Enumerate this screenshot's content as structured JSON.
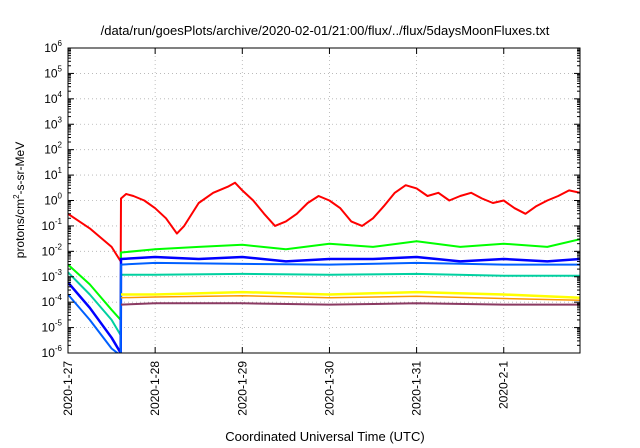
{
  "chart_data": {
    "type": "line",
    "title": "/data/run/goesPlots/archive/2020-02-01/21:00/flux/../flux/5daysMoonFluxes.txt",
    "xlabel": "Coordinated Universal Time (UTC)",
    "ylabel": "protons/cm²-s-sr-MeV",
    "ylabel_parts": {
      "pre": "protons/cm",
      "sup": "2",
      "post": "-s-sr-MeV"
    },
    "y_scale": "log",
    "ylim": [
      1e-06,
      1000000.0
    ],
    "xlim": [
      "2020-01-27T00:00",
      "2020-02-01T21:00"
    ],
    "grid": true,
    "legend": "none",
    "x_ticks": [
      "2020-1-27",
      "2020-1-28",
      "2020-1-29",
      "2020-1-30",
      "2020-1-31",
      "2020-2-1"
    ],
    "y_ticks": [
      {
        "base": "10",
        "exp": "-6"
      },
      {
        "base": "10",
        "exp": "-5"
      },
      {
        "base": "10",
        "exp": "-4"
      },
      {
        "base": "10",
        "exp": "-3"
      },
      {
        "base": "10",
        "exp": "-2"
      },
      {
        "base": "10",
        "exp": "-1"
      },
      {
        "base": "10",
        "exp": "0"
      },
      {
        "base": "10",
        "exp": "1"
      },
      {
        "base": "10",
        "exp": "2"
      },
      {
        "base": "10",
        "exp": "3"
      },
      {
        "base": "10",
        "exp": "4"
      },
      {
        "base": "10",
        "exp": "5"
      },
      {
        "base": "10",
        "exp": "6"
      }
    ],
    "series": [
      {
        "color": "#ff0000",
        "width": 2,
        "points": [
          [
            "2020-01-27T00:00",
            0.3
          ],
          [
            "2020-01-27T06:00",
            0.08
          ],
          [
            "2020-01-27T12:00",
            0.015
          ],
          [
            "2020-01-27T14:30",
            0.004
          ],
          [
            "2020-01-27T14:36",
            1.2
          ],
          [
            "2020-01-27T16:00",
            1.8
          ],
          [
            "2020-01-27T18:00",
            1.5
          ],
          [
            "2020-01-27T21:00",
            1.0
          ],
          [
            "2020-01-28T00:00",
            0.5
          ],
          [
            "2020-01-28T03:00",
            0.2
          ],
          [
            "2020-01-28T06:00",
            0.05
          ],
          [
            "2020-01-28T08:00",
            0.1
          ],
          [
            "2020-01-28T12:00",
            0.8
          ],
          [
            "2020-01-28T16:00",
            2.0
          ],
          [
            "2020-01-28T20:00",
            3.5
          ],
          [
            "2020-01-28T22:00",
            5.0
          ],
          [
            "2020-01-29T00:00",
            2.5
          ],
          [
            "2020-01-29T03:00",
            1.0
          ],
          [
            "2020-01-29T06:00",
            0.3
          ],
          [
            "2020-01-29T09:00",
            0.1
          ],
          [
            "2020-01-29T12:00",
            0.15
          ],
          [
            "2020-01-29T15:00",
            0.3
          ],
          [
            "2020-01-29T18:00",
            0.8
          ],
          [
            "2020-01-29T21:00",
            1.5
          ],
          [
            "2020-01-30T00:00",
            1.0
          ],
          [
            "2020-01-30T03:00",
            0.5
          ],
          [
            "2020-01-30T06:00",
            0.15
          ],
          [
            "2020-01-30T09:00",
            0.1
          ],
          [
            "2020-01-30T12:00",
            0.2
          ],
          [
            "2020-01-30T15:00",
            0.6
          ],
          [
            "2020-01-30T18:00",
            2.0
          ],
          [
            "2020-01-30T21:00",
            4.0
          ],
          [
            "2020-01-31T00:00",
            3.0
          ],
          [
            "2020-01-31T03:00",
            1.5
          ],
          [
            "2020-01-31T06:00",
            2.0
          ],
          [
            "2020-01-31T09:00",
            1.0
          ],
          [
            "2020-01-31T12:00",
            1.5
          ],
          [
            "2020-01-31T15:00",
            2.0
          ],
          [
            "2020-01-31T18:00",
            1.2
          ],
          [
            "2020-01-31T21:00",
            0.8
          ],
          [
            "2020-02-01T00:00",
            1.0
          ],
          [
            "2020-02-01T03:00",
            0.5
          ],
          [
            "2020-02-01T06:00",
            0.3
          ],
          [
            "2020-02-01T09:00",
            0.6
          ],
          [
            "2020-02-01T12:00",
            1.0
          ],
          [
            "2020-02-01T15:00",
            1.5
          ],
          [
            "2020-02-01T18:00",
            2.5
          ],
          [
            "2020-02-01T21:00",
            2.0
          ]
        ]
      },
      {
        "color": "#00ff00",
        "width": 2,
        "points": [
          [
            "2020-01-27T00:00",
            0.003
          ],
          [
            "2020-01-27T06:00",
            0.0005
          ],
          [
            "2020-01-27T12:00",
            5e-05
          ],
          [
            "2020-01-27T14:30",
            2e-05
          ],
          [
            "2020-01-27T14:36",
            0.009
          ],
          [
            "2020-01-28T00:00",
            0.012
          ],
          [
            "2020-01-28T12:00",
            0.015
          ],
          [
            "2020-01-29T00:00",
            0.018
          ],
          [
            "2020-01-29T12:00",
            0.012
          ],
          [
            "2020-01-30T00:00",
            0.02
          ],
          [
            "2020-01-30T12:00",
            0.015
          ],
          [
            "2020-01-31T00:00",
            0.025
          ],
          [
            "2020-01-31T12:00",
            0.015
          ],
          [
            "2020-02-01T00:00",
            0.02
          ],
          [
            "2020-02-01T12:00",
            0.015
          ],
          [
            "2020-02-01T21:00",
            0.03
          ]
        ]
      },
      {
        "color": "#00d0a0",
        "width": 2,
        "points": [
          [
            "2020-01-27T00:00",
            0.0015
          ],
          [
            "2020-01-27T06:00",
            0.0002
          ],
          [
            "2020-01-27T12:00",
            2e-05
          ],
          [
            "2020-01-27T14:30",
            5e-06
          ],
          [
            "2020-01-27T14:36",
            0.0012
          ],
          [
            "2020-01-28T00:00",
            0.0012
          ],
          [
            "2020-01-29T00:00",
            0.0013
          ],
          [
            "2020-01-30T00:00",
            0.0012
          ],
          [
            "2020-01-31T00:00",
            0.0013
          ],
          [
            "2020-02-01T00:00",
            0.0011
          ],
          [
            "2020-02-01T21:00",
            0.0011
          ]
        ]
      },
      {
        "color": "#0000ff",
        "width": 2.5,
        "points": [
          [
            "2020-01-27T00:00",
            0.0006
          ],
          [
            "2020-01-27T06:00",
            6e-05
          ],
          [
            "2020-01-27T12:00",
            4e-06
          ],
          [
            "2020-01-27T14:30",
            1e-06
          ],
          [
            "2020-01-27T14:36",
            0.005
          ],
          [
            "2020-01-28T00:00",
            0.006
          ],
          [
            "2020-01-28T12:00",
            0.005
          ],
          [
            "2020-01-29T00:00",
            0.006
          ],
          [
            "2020-01-29T12:00",
            0.004
          ],
          [
            "2020-01-30T00:00",
            0.005
          ],
          [
            "2020-01-30T12:00",
            0.005
          ],
          [
            "2020-01-31T00:00",
            0.006
          ],
          [
            "2020-01-31T12:00",
            0.004
          ],
          [
            "2020-02-01T00:00",
            0.005
          ],
          [
            "2020-02-01T12:00",
            0.004
          ],
          [
            "2020-02-01T21:00",
            0.005
          ]
        ]
      },
      {
        "color": "#0060ff",
        "width": 2,
        "points": [
          [
            "2020-01-27T00:00",
            0.0002
          ],
          [
            "2020-01-27T06:00",
            2e-05
          ],
          [
            "2020-01-27T12:00",
            1.5e-06
          ],
          [
            "2020-01-27T14:30",
            8e-07
          ],
          [
            "2020-01-27T14:36",
            0.003
          ],
          [
            "2020-01-28T00:00",
            0.0035
          ],
          [
            "2020-01-29T00:00",
            0.0032
          ],
          [
            "2020-01-30T00:00",
            0.003
          ],
          [
            "2020-01-31T00:00",
            0.0035
          ],
          [
            "2020-02-01T00:00",
            0.003
          ],
          [
            "2020-02-01T21:00",
            0.003
          ]
        ]
      },
      {
        "color": "#ffff00",
        "width": 2.5,
        "points": [
          [
            "2020-01-27T14:36",
            0.0002
          ],
          [
            "2020-01-28T00:00",
            0.0002
          ],
          [
            "2020-01-29T00:00",
            0.00025
          ],
          [
            "2020-01-30T00:00",
            0.0002
          ],
          [
            "2020-01-31T00:00",
            0.00025
          ],
          [
            "2020-02-01T00:00",
            0.0002
          ],
          [
            "2020-02-01T21:00",
            0.00015
          ]
        ]
      },
      {
        "color": "#ff9900",
        "width": 1.5,
        "points": [
          [
            "2020-01-27T14:36",
            0.00015
          ],
          [
            "2020-01-28T00:00",
            0.00016
          ],
          [
            "2020-01-29T00:00",
            0.00018
          ],
          [
            "2020-01-30T00:00",
            0.00015
          ],
          [
            "2020-01-31T00:00",
            0.00017
          ],
          [
            "2020-02-01T00:00",
            0.00014
          ],
          [
            "2020-02-01T21:00",
            0.00012
          ]
        ]
      },
      {
        "color": "#8b3a62",
        "width": 2,
        "points": [
          [
            "2020-01-27T14:36",
            8e-05
          ],
          [
            "2020-01-28T00:00",
            9e-05
          ],
          [
            "2020-01-29T00:00",
            9e-05
          ],
          [
            "2020-01-30T00:00",
            8e-05
          ],
          [
            "2020-01-31T00:00",
            9e-05
          ],
          [
            "2020-02-01T00:00",
            8e-05
          ],
          [
            "2020-02-01T21:00",
            8e-05
          ]
        ]
      }
    ]
  }
}
